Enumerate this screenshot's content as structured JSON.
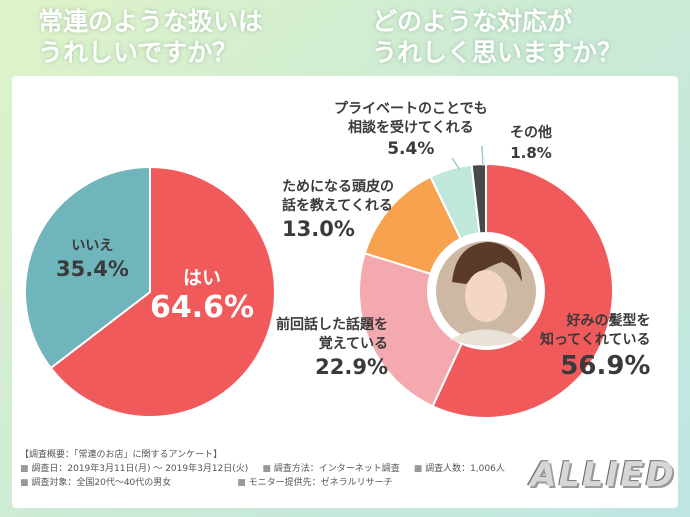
{
  "headline_left": [
    "常連のような扱いは",
    "うれしいですか？"
  ],
  "headline_right": [
    "どのような対応が",
    "うれしく思いますか？"
  ],
  "colors": {
    "red": "#f05a5b",
    "teal": "#6fb5bb",
    "pink": "#f3a9ad",
    "orange": "#f6a24e",
    "mint": "#bfe7dc",
    "dark": "#4a4a4a"
  },
  "chart_data": [
    {
      "type": "pie",
      "slices": [
        {
          "label": "はい",
          "value": 64.6,
          "display": "64.6%"
        },
        {
          "label": "いいえ",
          "value": 35.4,
          "display": "35.4%"
        }
      ]
    },
    {
      "type": "pie",
      "slices": [
        {
          "label": "好みの髪型を知ってくれている",
          "lines": [
            "好みの髪型を",
            "知ってくれている"
          ],
          "value": 56.9,
          "display": "56.9%"
        },
        {
          "label": "前回話した話題を覚えている",
          "lines": [
            "前回話した話題を",
            "覚えている"
          ],
          "value": 22.9,
          "display": "22.9%"
        },
        {
          "label": "ためになる頭皮の話を教えてくれる",
          "lines": [
            "ためになる頭皮の",
            "話を教えてくれる"
          ],
          "value": 13.0,
          "display": "13.0%"
        },
        {
          "label": "プライベートのことでも相談を受けてくれる",
          "lines": [
            "プライベートのことでも",
            "相談を受けてくれる"
          ],
          "value": 5.4,
          "display": "5.4%"
        },
        {
          "label": "その他",
          "lines": [
            "その他"
          ],
          "value": 1.8,
          "display": "1.8%"
        }
      ]
    }
  ],
  "notes": {
    "title": "【調査概要：「常連のお店」に関するアンケート】",
    "period": "調査日：2019年3月11日(月) ～ 2019年3月12日(火)",
    "method": "調査方法：インターネット調査",
    "count": "調査人数：1,006人",
    "target": "調査対象：全国20代～40代の男女",
    "provider": "モニター提供先：ゼネラルリサーチ"
  },
  "logo": "ALLIED"
}
